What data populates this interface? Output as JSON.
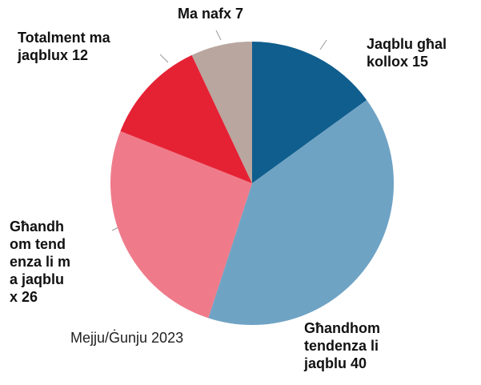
{
  "chart_data": {
    "type": "pie",
    "subtitle": "Mejju/Ġunju 2023",
    "categories": [
      "Jaqblu għal kollox",
      "Għandhom tendenza li jaqblu",
      "Għandhom tendenza li ma jaqblux",
      "Totalment ma jaqblux",
      "Ma nafx"
    ],
    "values": [
      15,
      40,
      26,
      12,
      7
    ],
    "colors": [
      "#0f5e8e",
      "#6fa3c4",
      "#ef7b8a",
      "#e52234",
      "#b8a69f"
    ]
  }
}
